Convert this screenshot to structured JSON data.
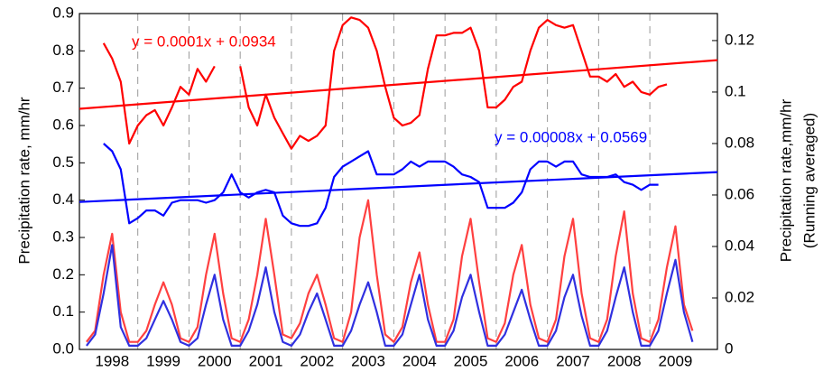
{
  "chart_data": {
    "type": "line",
    "y_label": "Precipitation rate, mm/hr",
    "y2_label": "Precipitation rate,mm/hr",
    "y2_sublabel": "(Running averaged)",
    "xlim": [
      1997.86,
      2010.32
    ],
    "xticks": [
      {
        "value": 1998.5,
        "label": "1998"
      },
      {
        "value": 1999.5,
        "label": "1999"
      },
      {
        "value": 2000.5,
        "label": "2000"
      },
      {
        "value": 2001.5,
        "label": "2001"
      },
      {
        "value": 2002.5,
        "label": "2002"
      },
      {
        "value": 2003.5,
        "label": "2003"
      },
      {
        "value": 2004.5,
        "label": "2004"
      },
      {
        "value": 2005.5,
        "label": "2005"
      },
      {
        "value": 2006.5,
        "label": "2006"
      },
      {
        "value": 2007.5,
        "label": "2007"
      },
      {
        "value": 2008.5,
        "label": "2008"
      },
      {
        "value": 2009.5,
        "label": "2009"
      }
    ],
    "x_gridlines": [
      1999,
      2000,
      2001,
      2002,
      2003,
      2004,
      2005,
      2006,
      2007,
      2008,
      2009
    ],
    "ylim": [
      0,
      0.9
    ],
    "yticks": [
      {
        "value": 0,
        "label": "0.0"
      },
      0.1,
      0.2,
      0.3,
      0.4,
      0.5,
      0.6,
      0.7,
      0.8,
      0.9
    ],
    "y2lim": [
      0,
      0.1305
    ],
    "y2ticks": [
      0,
      0.02,
      0.04,
      0.06,
      0.08,
      0.1,
      0.12
    ],
    "x": [
      1998,
      1998.167,
      1998.333,
      1998.5,
      1998.667,
      1998.833,
      1999,
      1999.167,
      1999.333,
      1999.5,
      1999.667,
      1999.833,
      2000,
      2000.167,
      2000.333,
      2000.5,
      2000.667,
      2000.833,
      2001,
      2001.167,
      2001.333,
      2001.5,
      2001.667,
      2001.833,
      2002,
      2002.167,
      2002.333,
      2002.5,
      2002.667,
      2002.833,
      2003,
      2003.167,
      2003.333,
      2003.5,
      2003.667,
      2003.833,
      2004,
      2004.167,
      2004.333,
      2004.5,
      2004.667,
      2004.833,
      2005,
      2005.167,
      2005.333,
      2005.5,
      2005.667,
      2005.833,
      2006,
      2006.167,
      2006.333,
      2006.5,
      2006.667,
      2006.833,
      2007,
      2007.167,
      2007.333,
      2007.5,
      2007.667,
      2007.833,
      2008,
      2008.167,
      2008.333,
      2008.5,
      2008.667,
      2008.833,
      2009,
      2009.167,
      2009.333,
      2009.5,
      2009.667,
      2009.833
    ],
    "series": [
      {
        "color": "#ff4040",
        "axis": "y",
        "values": [
          0.02,
          0.05,
          0.2,
          0.31,
          0.1,
          0.02,
          0.02,
          0.05,
          0.12,
          0.18,
          0.12,
          0.03,
          0.02,
          0.06,
          0.2,
          0.31,
          0.15,
          0.03,
          0.02,
          0.08,
          0.2,
          0.35,
          0.2,
          0.04,
          0.03,
          0.07,
          0.15,
          0.2,
          0.12,
          0.03,
          0.02,
          0.1,
          0.3,
          0.4,
          0.2,
          0.04,
          0.02,
          0.06,
          0.18,
          0.26,
          0.12,
          0.02,
          0.02,
          0.08,
          0.25,
          0.35,
          0.18,
          0.03,
          0.02,
          0.07,
          0.2,
          0.28,
          0.12,
          0.03,
          0.02,
          0.08,
          0.25,
          0.35,
          0.15,
          0.03,
          0.02,
          0.08,
          0.25,
          0.37,
          0.15,
          0.03,
          0.02,
          0.08,
          0.22,
          0.33,
          0.12,
          0.05
        ]
      },
      {
        "color": "#3030e0",
        "axis": "y",
        "values": [
          0.01,
          0.04,
          0.15,
          0.28,
          0.06,
          0.01,
          0.01,
          0.03,
          0.08,
          0.13,
          0.08,
          0.02,
          0.01,
          0.03,
          0.12,
          0.2,
          0.08,
          0.01,
          0.01,
          0.05,
          0.12,
          0.22,
          0.1,
          0.02,
          0.01,
          0.04,
          0.1,
          0.15,
          0.08,
          0.01,
          0.01,
          0.05,
          0.12,
          0.18,
          0.1,
          0.01,
          0.01,
          0.04,
          0.12,
          0.2,
          0.08,
          0.01,
          0.01,
          0.05,
          0.14,
          0.2,
          0.1,
          0.01,
          0.01,
          0.04,
          0.1,
          0.16,
          0.08,
          0.01,
          0.01,
          0.05,
          0.14,
          0.2,
          0.09,
          0.01,
          0.01,
          0.05,
          0.14,
          0.22,
          0.1,
          0.01,
          0.01,
          0.05,
          0.15,
          0.24,
          0.1,
          0.02
        ]
      },
      {
        "color": "#ff0000",
        "axis": "y2",
        "values": [
          null,
          null,
          0.119,
          0.113,
          0.104,
          0.08,
          0.087,
          0.091,
          0.093,
          0.087,
          0.094,
          0.102,
          0.099,
          0.109,
          0.104,
          0.11,
          null,
          null,
          0.11,
          0.094,
          0.087,
          0.099,
          0.09,
          0.084,
          0.078,
          0.083,
          0.081,
          0.083,
          0.087,
          0.116,
          0.126,
          0.129,
          0.128,
          0.125,
          0.116,
          0.102,
          0.09,
          0.087,
          0.088,
          0.091,
          0.109,
          0.122,
          0.122,
          0.123,
          0.123,
          0.125,
          0.116,
          0.094,
          0.094,
          0.097,
          0.102,
          0.104,
          0.116,
          0.125,
          0.128,
          0.126,
          0.125,
          0.126,
          0.116,
          0.106,
          0.106,
          0.104,
          0.107,
          0.102,
          0.104,
          0.1,
          0.099,
          0.102,
          0.103,
          null,
          null,
          null
        ]
      },
      {
        "color": "#0000ff",
        "axis": "y2",
        "values": [
          null,
          null,
          0.08,
          0.077,
          0.07,
          0.049,
          0.051,
          0.054,
          0.054,
          0.052,
          0.057,
          0.058,
          0.058,
          0.058,
          0.057,
          0.058,
          0.061,
          0.068,
          0.061,
          0.059,
          0.061,
          0.062,
          0.061,
          0.052,
          0.049,
          0.048,
          0.048,
          0.049,
          0.055,
          0.067,
          0.071,
          0.073,
          0.075,
          0.077,
          0.068,
          0.068,
          0.068,
          0.07,
          0.073,
          0.071,
          0.073,
          0.073,
          0.073,
          0.071,
          0.068,
          0.067,
          0.065,
          0.055,
          0.055,
          0.055,
          0.057,
          0.061,
          0.07,
          0.073,
          0.073,
          0.071,
          0.073,
          0.073,
          0.068,
          0.067,
          0.067,
          0.067,
          0.068,
          0.065,
          0.064,
          0.062,
          0.064,
          0.064,
          null,
          null,
          null,
          null
        ]
      }
    ],
    "trendlines": [
      {
        "color": "#ff0000",
        "axis": "y2",
        "x": [
          1997.86,
          2010.32
        ],
        "values": [
          0.0935,
          0.1124
        ],
        "label": "y = 0.0001x + 0.0934"
      },
      {
        "color": "#0000ff",
        "axis": "y2",
        "x": [
          1997.86,
          2010.32
        ],
        "values": [
          0.0573,
          0.0689
        ],
        "label": "y = 0.00008x + 0.0569"
      }
    ]
  }
}
